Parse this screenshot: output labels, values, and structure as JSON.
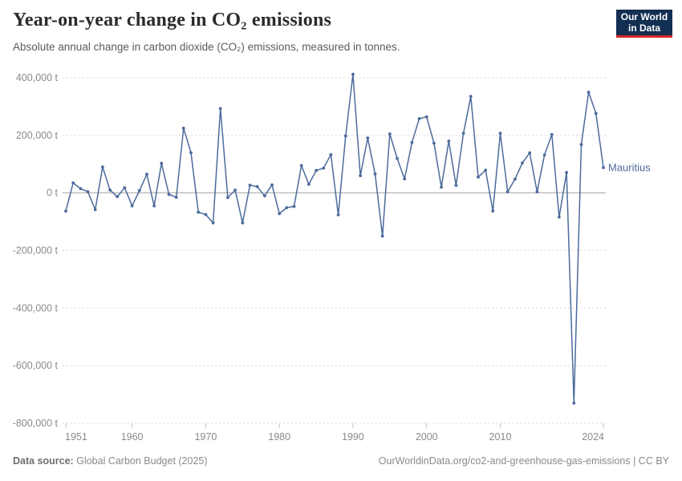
{
  "header": {
    "title": "Year-on-year change in CO₂ emissions",
    "subtitle": "Absolute annual change in carbon dioxide (CO₂) emissions, measured in tonnes."
  },
  "logo": {
    "line1": "Our World",
    "line2": "in Data"
  },
  "footer": {
    "source_label": "Data source:",
    "source": "Global Carbon Budget (2025)",
    "rights": "OurWorldinData.org/co2-and-greenhouse-gas-emissions | CC BY"
  },
  "colors": {
    "line": "#4C6A9C",
    "grid": "#dadada",
    "zero_line": "#a6a6a6",
    "tick_text": "#8a8a8a",
    "navy": "#132f52",
    "red": "#d6262d"
  },
  "chart_data": {
    "type": "line",
    "title": "Year-on-year change in CO₂ emissions",
    "xlabel": "",
    "ylabel": "",
    "unit": "t",
    "grid": "horizontal dashed",
    "legend_position": "end-of-line label",
    "x_range": [
      1951,
      2024
    ],
    "y_range": [
      -800000,
      400000
    ],
    "x_ticks": [
      {
        "year": 1951,
        "label": "1951",
        "anchor": "start"
      },
      {
        "year": 1960,
        "label": "1960",
        "anchor": "middle"
      },
      {
        "year": 1970,
        "label": "1970",
        "anchor": "middle"
      },
      {
        "year": 1980,
        "label": "1980",
        "anchor": "middle"
      },
      {
        "year": 1990,
        "label": "1990",
        "anchor": "middle"
      },
      {
        "year": 2000,
        "label": "2000",
        "anchor": "middle"
      },
      {
        "year": 2010,
        "label": "2010",
        "anchor": "middle"
      },
      {
        "year": 2024,
        "label": "2024",
        "anchor": "end"
      }
    ],
    "y_ticks": [
      {
        "value": 400000,
        "label": "400,000 t"
      },
      {
        "value": 200000,
        "label": "200,000 t"
      },
      {
        "value": 0,
        "label": "0 t"
      },
      {
        "value": -200000,
        "label": "-200,000 t"
      },
      {
        "value": -400000,
        "label": "-400,000 t"
      },
      {
        "value": -600000,
        "label": "-600,000 t"
      },
      {
        "value": -800000,
        "label": "-800,000 t"
      }
    ],
    "series": [
      {
        "name": "Mauritius",
        "color": "#4C6A9C",
        "years": [
          1951,
          1952,
          1953,
          1954,
          1955,
          1956,
          1957,
          1958,
          1959,
          1960,
          1961,
          1962,
          1963,
          1964,
          1965,
          1966,
          1967,
          1968,
          1969,
          1970,
          1971,
          1972,
          1973,
          1974,
          1975,
          1976,
          1977,
          1978,
          1979,
          1980,
          1981,
          1982,
          1983,
          1984,
          1985,
          1986,
          1987,
          1988,
          1989,
          1990,
          1991,
          1992,
          1993,
          1994,
          1995,
          1996,
          1997,
          1998,
          1999,
          2000,
          2001,
          2002,
          2003,
          2004,
          2005,
          2006,
          2007,
          2008,
          2009,
          2010,
          2011,
          2012,
          2013,
          2014,
          2015,
          2016,
          2017,
          2018,
          2019,
          2020,
          2021,
          2022,
          2023,
          2024
        ],
        "values": [
          -63000,
          35000,
          15000,
          4000,
          -58000,
          90000,
          10000,
          -13000,
          18000,
          -45000,
          8000,
          65000,
          -45000,
          103000,
          -5000,
          -15000,
          225000,
          140000,
          -67000,
          -75000,
          -104000,
          293000,
          -16000,
          10000,
          -104000,
          27000,
          22000,
          -10000,
          28000,
          -72000,
          -51000,
          -47000,
          95000,
          30000,
          78000,
          86000,
          133000,
          -76000,
          198000,
          412000,
          60000,
          191000,
          66000,
          -150000,
          205000,
          120000,
          49000,
          175000,
          258000,
          264000,
          173000,
          20000,
          180000,
          26000,
          207000,
          335000,
          55000,
          79000,
          -63000,
          207000,
          4000,
          48000,
          104000,
          139000,
          4000,
          132000,
          203000,
          -84000,
          71000,
          -730000,
          168000,
          350000,
          276000,
          88000
        ]
      }
    ]
  }
}
